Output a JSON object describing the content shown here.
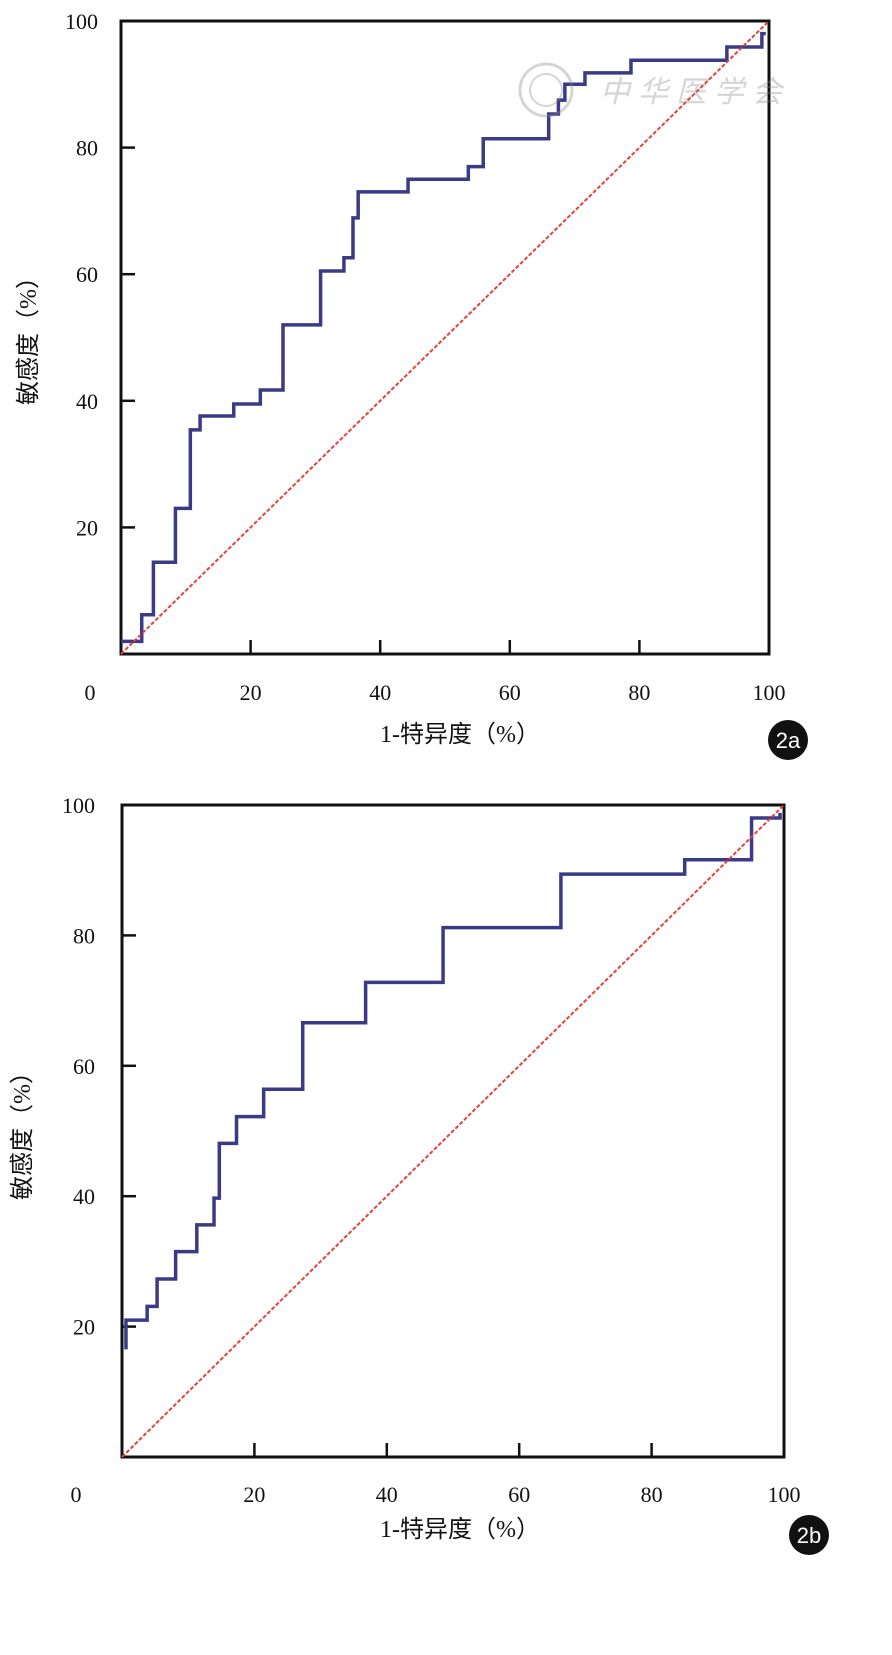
{
  "watermark": "中华医学会",
  "chart_data": [
    {
      "type": "line",
      "panel_label": "2a",
      "xlabel": "1-特异度（%）",
      "ylabel": "敏感度（%）",
      "xlim": [
        0,
        100
      ],
      "ylim": [
        0,
        100
      ],
      "xticks": [
        "20",
        "40",
        "60",
        "80",
        "100"
      ],
      "yticks": [
        "20",
        "40",
        "60",
        "80",
        "100"
      ],
      "origin_label": "0",
      "grid": false,
      "series": [
        {
          "name": "ROC",
          "color": "#3b3a86",
          "step": true,
          "x": [
            0,
            3.2,
            5,
            8.4,
            10.7,
            12.2,
            17.4,
            21.5,
            25,
            30.8,
            34.4,
            35.8,
            36.6,
            44.3,
            53.6,
            55.9,
            66,
            67.5,
            68.5,
            71.6,
            78.7,
            93.5,
            98.9,
            99.5
          ],
          "y": [
            2,
            6.2,
            14.5,
            23,
            35.4,
            37.6,
            39.5,
            41.7,
            52,
            60.5,
            62.6,
            68.9,
            73,
            75,
            77,
            81.4,
            85.3,
            87.5,
            90,
            91.8,
            93.8,
            95.9,
            98,
            98
          ]
        },
        {
          "name": "Reference",
          "color": "#e8403c",
          "dashed": true,
          "x": [
            0,
            100
          ],
          "y": [
            0,
            100
          ]
        }
      ]
    },
    {
      "type": "line",
      "panel_label": "2b",
      "xlabel": "1-特异度（%）",
      "ylabel": "敏感度（%）",
      "xlim": [
        0,
        100
      ],
      "ylim": [
        0,
        100
      ],
      "xticks": [
        "20",
        "40",
        "60",
        "80",
        "100"
      ],
      "yticks": [
        "20",
        "40",
        "60",
        "80",
        "100"
      ],
      "origin_label": "0",
      "grid": false,
      "series": [
        {
          "name": "ROC",
          "color": "#3b3a86",
          "step": true,
          "x": [
            0.6,
            0.6,
            3.8,
            5.3,
            8.1,
            11.3,
            13.9,
            14.7,
            17.3,
            21.4,
            27.3,
            36.8,
            48.5,
            66.3,
            85,
            95.1,
            99.4,
            99.4
          ],
          "y": [
            16.5,
            21,
            23.1,
            27.3,
            31.5,
            35.6,
            39.7,
            48.1,
            52.2,
            56.4,
            66.6,
            72.8,
            81.2,
            89.4,
            91.6,
            98,
            98.8,
            98.8
          ]
        },
        {
          "name": "Reference",
          "color": "#e8403c",
          "dashed": true,
          "x": [
            0,
            100
          ],
          "y": [
            0,
            100
          ]
        }
      ]
    }
  ]
}
